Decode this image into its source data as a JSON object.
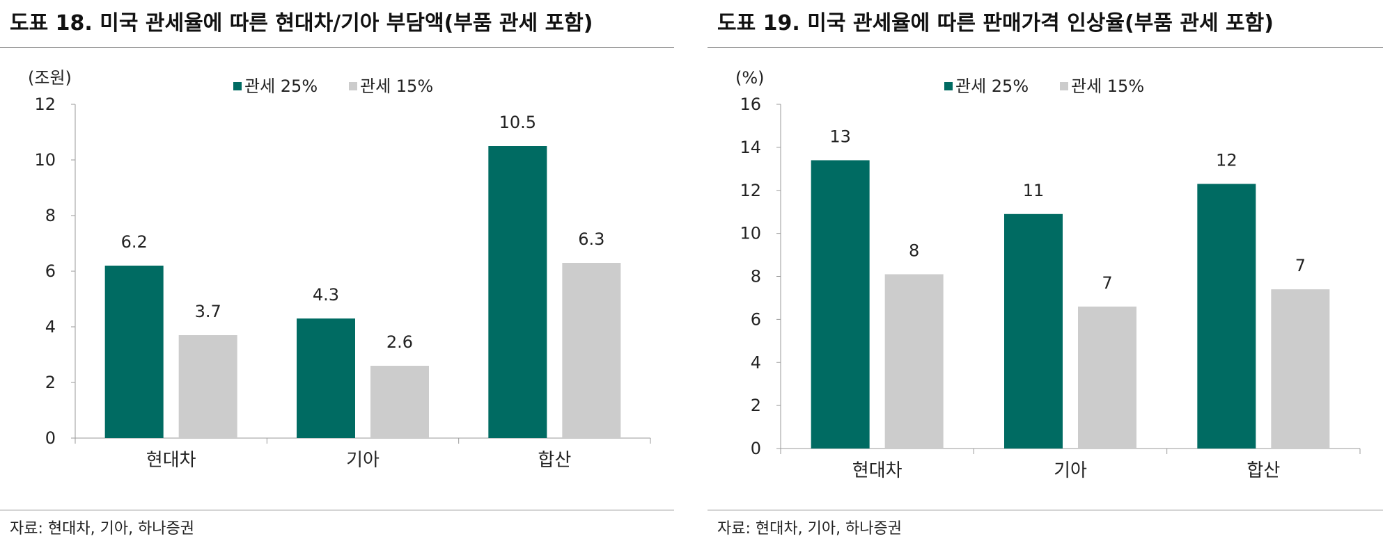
{
  "colors": {
    "series1": "#006B62",
    "series2": "#CCCCCC",
    "axis": "#9a9a9a"
  },
  "charts": [
    {
      "title": "도표 18. 미국 관세율에 따른 현대차/기아 부담액(부품 관세 포함)",
      "source": "자료: 현대차, 기아, 하나증권",
      "unit": "(조원)"
    },
    {
      "title": "도표 19. 미국 관세율에 따른 판매가격 인상율(부품 관세 포함)",
      "source": "자료: 현대차, 기아, 하나증권",
      "unit": "(%)"
    }
  ],
  "chart_data": [
    {
      "type": "bar",
      "title": "도표 18. 미국 관세율에 따른 현대차/기아 부담액(부품 관세 포함)",
      "ylabel": "(조원)",
      "categories": [
        "현대차",
        "기아",
        "합산"
      ],
      "series": [
        {
          "name": "관세 25%",
          "values": [
            6.2,
            4.3,
            10.5
          ],
          "labels": [
            "6.2",
            "4.3",
            "10.5"
          ]
        },
        {
          "name": "관세 15%",
          "values": [
            3.7,
            2.6,
            6.3
          ],
          "labels": [
            "3.7",
            "2.6",
            "6.3"
          ]
        }
      ],
      "ylim": [
        0,
        12
      ],
      "yticks": [
        "0",
        "2",
        "4",
        "6",
        "8",
        "10",
        "12"
      ],
      "legend": "top-center",
      "grid": false
    },
    {
      "type": "bar",
      "title": "도표 19. 미국 관세율에 따른 판매가격 인상율(부품 관세 포함)",
      "ylabel": "(%)",
      "categories": [
        "현대차",
        "기아",
        "합산"
      ],
      "series": [
        {
          "name": "관세 25%",
          "values": [
            13.4,
            10.9,
            12.3
          ],
          "labels": [
            "13",
            "11",
            "12"
          ]
        },
        {
          "name": "관세 15%",
          "values": [
            8.1,
            6.6,
            7.4
          ],
          "labels": [
            "8",
            "7",
            "7"
          ]
        }
      ],
      "ylim": [
        0,
        16
      ],
      "yticks": [
        "0",
        "2",
        "4",
        "6",
        "8",
        "10",
        "12",
        "14",
        "16"
      ],
      "legend": "top-center",
      "grid": false
    }
  ]
}
